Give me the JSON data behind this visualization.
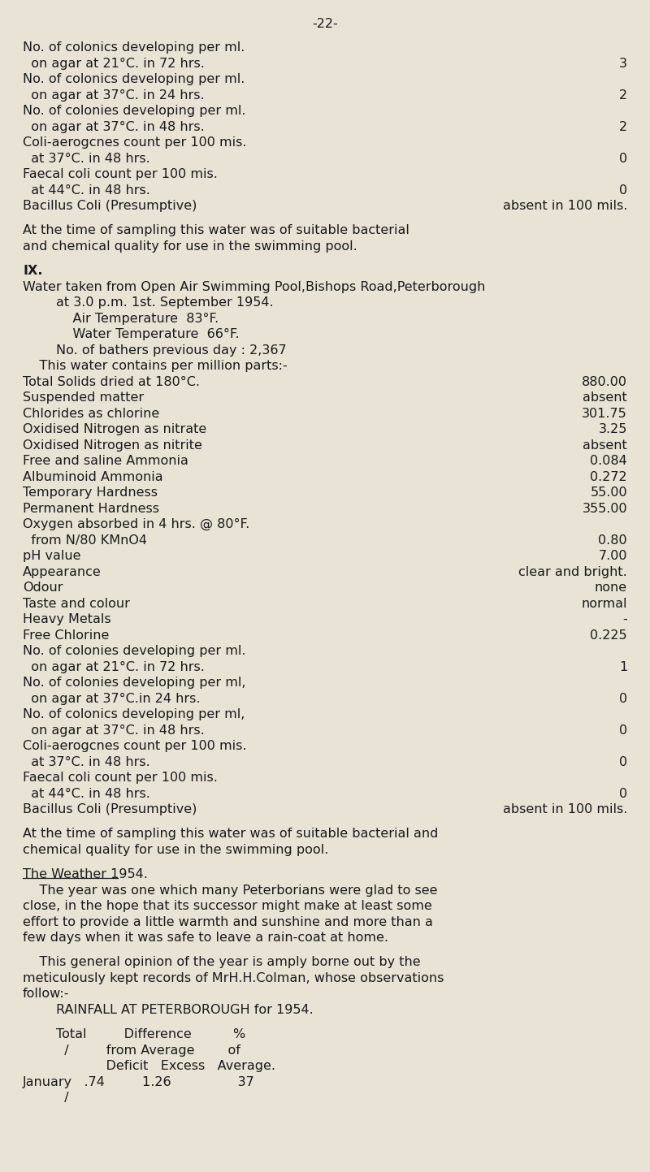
{
  "background_color": "#e8e3d5",
  "text_color": "#1a1a1a",
  "page_number": "-22-",
  "lines": [
    {
      "text": "No. of colonics developing per ml.",
      "style": "normal"
    },
    {
      "text": "  on agar at 21°C. in 72 hrs.",
      "value": "3",
      "style": "normal"
    },
    {
      "text": "No. of colonics developing per ml.",
      "style": "normal"
    },
    {
      "text": "  on agar at 37°C. in 24 hrs.",
      "value": "2",
      "style": "normal"
    },
    {
      "text": "No. of colonies developing per ml.",
      "style": "normal"
    },
    {
      "text": "  on agar at 37°C. in 48 hrs.",
      "value": "2",
      "style": "normal"
    },
    {
      "text": "Coli-aerogcnes count per 100 mis.",
      "style": "normal"
    },
    {
      "text": "  at 37°C. in 48 hrs.",
      "value": "0",
      "style": "normal"
    },
    {
      "text": "Faecal coli count per 100 mis.",
      "style": "normal"
    },
    {
      "text": "  at 44°C. in 48 hrs.",
      "value": "0",
      "style": "normal"
    },
    {
      "text": "Bacillus Coli (Presumptive)",
      "value": "absent in 100 mils.",
      "style": "normal"
    },
    {
      "text": "",
      "style": "spacer"
    },
    {
      "text": "At the time of sampling this water was of suitable bacterial",
      "style": "normal"
    },
    {
      "text": "and chemical quality for use in the swimming pool.",
      "style": "normal"
    },
    {
      "text": "",
      "style": "spacer"
    },
    {
      "text": "IX.",
      "style": "bold"
    },
    {
      "text": "Water taken from Open Air Swimming Pool,Bishops Road,Peterborough",
      "style": "normal"
    },
    {
      "text": "        at 3.0 p.m. 1st. September 1954.",
      "style": "normal"
    },
    {
      "text": "            Air Temperature  83°F.",
      "style": "normal"
    },
    {
      "text": "            Water Temperature  66°F.",
      "style": "normal"
    },
    {
      "text": "        No. of bathers previous day : 2,367",
      "style": "normal"
    },
    {
      "text": "    This water contains per million parts:-",
      "style": "normal"
    },
    {
      "text": "Total Solids dried at 180°C.",
      "value": "880.00",
      "style": "normal"
    },
    {
      "text": "Suspended matter",
      "value": "absent",
      "style": "normal"
    },
    {
      "text": "Chlorides as chlorine",
      "value": "301.75",
      "style": "normal"
    },
    {
      "text": "Oxidised Nitrogen as nitrate",
      "value": "3.25",
      "style": "normal"
    },
    {
      "text": "Oxidised Nitrogen as nitrite",
      "value": "absent",
      "style": "normal"
    },
    {
      "text": "Free and saline Ammonia",
      "value": "0.084",
      "style": "normal"
    },
    {
      "text": "Albuminoid Ammonia",
      "value": "0.272",
      "style": "normal"
    },
    {
      "text": "Temporary Hardness",
      "value": "55.00",
      "style": "normal"
    },
    {
      "text": "Permanent Hardness",
      "value": "355.00",
      "style": "normal"
    },
    {
      "text": "Oxygen absorbed in 4 hrs. @ 80°F.",
      "style": "normal"
    },
    {
      "text": "  from N/80 KMnO4",
      "value": "0.80",
      "style": "normal"
    },
    {
      "text": "pH value",
      "value": "7.00",
      "style": "normal"
    },
    {
      "text": "Appearance",
      "value": "clear and bright.",
      "style": "normal"
    },
    {
      "text": "Odour",
      "value": "none",
      "style": "normal"
    },
    {
      "text": "Taste and colour",
      "value": "normal",
      "style": "normal"
    },
    {
      "text": "Heavy Metals",
      "value": "-",
      "style": "normal"
    },
    {
      "text": "Free Chlorine",
      "value": "0.225",
      "style": "normal"
    },
    {
      "text": "No. of colonies developing per ml.",
      "style": "normal"
    },
    {
      "text": "  on agar at 21°C. in 72 hrs.",
      "value": "1",
      "style": "normal"
    },
    {
      "text": "No. of colonies developing per ml,",
      "style": "normal"
    },
    {
      "text": "  on agar at 37°C.in 24 hrs.",
      "value": "0",
      "style": "normal"
    },
    {
      "text": "No. of colonics developing per ml,",
      "style": "normal"
    },
    {
      "text": "  on agar at 37°C. in 48 hrs.",
      "value": "0",
      "style": "normal"
    },
    {
      "text": "Coli-aerogcnes count per 100 mis.",
      "style": "normal"
    },
    {
      "text": "  at 37°C. in 48 hrs.",
      "value": "0",
      "style": "normal"
    },
    {
      "text": "Faecal coli count per 100 mis.",
      "style": "normal"
    },
    {
      "text": "  at 44°C. in 48 hrs.",
      "value": "0",
      "style": "normal"
    },
    {
      "text": "Bacillus Coli (Presumptive)",
      "value": "absent in 100 mils.",
      "style": "normal"
    },
    {
      "text": "",
      "style": "spacer"
    },
    {
      "text": "At the time of sampling this water was of suitable bacterial and",
      "style": "normal"
    },
    {
      "text": "chemical quality for use in the swimming pool.",
      "style": "normal"
    },
    {
      "text": "",
      "style": "spacer"
    },
    {
      "text": "The Weather 1954.",
      "style": "underline"
    },
    {
      "text": "    The year was one which many Peterborians were glad to see",
      "style": "normal"
    },
    {
      "text": "close, in the hope that its successor might make at least some",
      "style": "normal"
    },
    {
      "text": "effort to provide a little warmth and sunshine and more than a",
      "style": "normal"
    },
    {
      "text": "few days when it was safe to leave a rain-coat at home.",
      "style": "normal"
    },
    {
      "text": "",
      "style": "spacer"
    },
    {
      "text": "    This general opinion of the year is amply borne out by the",
      "style": "normal"
    },
    {
      "text": "meticulously kept records of MrH.H.Colman, whose observations",
      "style": "normal"
    },
    {
      "text": "follow:-",
      "style": "normal"
    },
    {
      "text": "        RAINFALL AT PETERBOROUGH for 1954.",
      "style": "normal"
    },
    {
      "text": "",
      "style": "spacer"
    },
    {
      "text": "        Total         Difference          %",
      "style": "normal"
    },
    {
      "text": "          /         from Average        of",
      "style": "normal"
    },
    {
      "text": "                    Deficit   Excess   Average.",
      "style": "normal"
    },
    {
      "text": "January   .74         1.26                37",
      "style": "normal"
    },
    {
      "text": "          /",
      "style": "normal"
    }
  ]
}
